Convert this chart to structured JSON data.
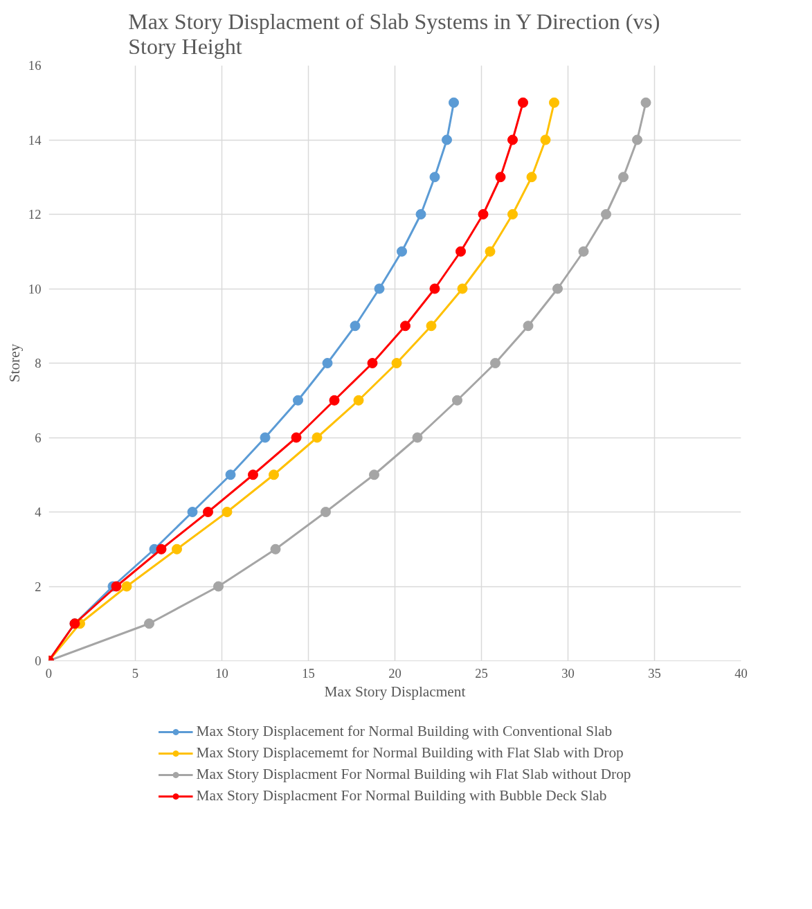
{
  "chart_data": {
    "type": "line",
    "title": "Max Story Displacment of Slab Systems in Y Direction (vs) Story Height",
    "xlabel": "Max Story Displacment",
    "ylabel": "Storey",
    "series": [
      {
        "name": "Max Story Displacement for Normal Building with Conventional Slab",
        "color": "#5b9bd5",
        "x": [
          0,
          1.5,
          3.7,
          6.1,
          8.3,
          10.5,
          12.5,
          14.4,
          16.1,
          17.7,
          19.1,
          20.4,
          21.5,
          22.3,
          23.0,
          23.4
        ],
        "values": [
          0,
          1,
          2,
          3,
          4,
          5,
          6,
          7,
          8,
          9,
          10,
          11,
          12,
          13,
          14,
          15
        ]
      },
      {
        "name": "Max Story Displacememt for Normal Building with Flat Slab with Drop",
        "color": "#ffc000",
        "x": [
          0,
          1.8,
          4.5,
          7.4,
          10.3,
          13.0,
          15.5,
          17.9,
          20.1,
          22.1,
          23.9,
          25.5,
          26.8,
          27.9,
          28.7,
          29.2
        ],
        "values": [
          0,
          1,
          2,
          3,
          4,
          5,
          6,
          7,
          8,
          9,
          10,
          11,
          12,
          13,
          14,
          15
        ]
      },
      {
        "name": "Max Story Displacment For Normal Building wih Flat Slab without Drop",
        "color": "#a5a5a5",
        "x": [
          0,
          5.8,
          9.8,
          13.1,
          16.0,
          18.8,
          21.3,
          23.6,
          25.8,
          27.7,
          29.4,
          30.9,
          32.2,
          33.2,
          34.0,
          34.5
        ],
        "values": [
          0,
          1,
          2,
          3,
          4,
          5,
          6,
          7,
          8,
          9,
          10,
          11,
          12,
          13,
          14,
          15
        ]
      },
      {
        "name": "Max Story Displacment For Normal Building with Bubble Deck Slab",
        "color": "#ff0000",
        "x": [
          0,
          1.5,
          3.9,
          6.5,
          9.2,
          11.8,
          14.3,
          16.5,
          18.7,
          20.6,
          22.3,
          23.8,
          25.1,
          26.1,
          26.8,
          27.4
        ],
        "values": [
          0,
          1,
          2,
          3,
          4,
          5,
          6,
          7,
          8,
          9,
          10,
          11,
          12,
          13,
          14,
          15
        ]
      }
    ],
    "xlim": [
      0,
      40
    ],
    "xticks": [
      0,
      5,
      10,
      15,
      20,
      25,
      30,
      35,
      40
    ],
    "ylim": [
      0,
      16
    ],
    "yticks": [
      0,
      2,
      4,
      6,
      8,
      10,
      12,
      14,
      16
    ],
    "grid": true,
    "legend": "bottom",
    "marker": "circle",
    "line_style": "solid"
  }
}
